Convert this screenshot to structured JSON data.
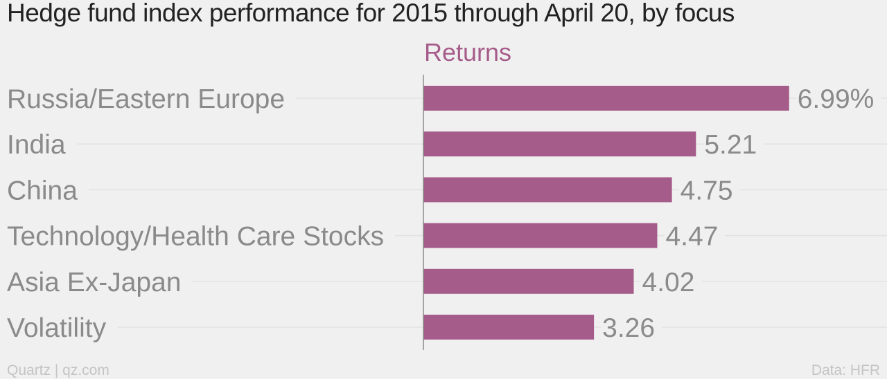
{
  "title": "Hedge fund index performance for 2015 through April 20, by focus",
  "footer": {
    "source_left": "Quartz | qz.com",
    "source_right": "Data: HFR"
  },
  "colors": {
    "bar": "#a65c8a",
    "label": "#8a8a8a",
    "background": "#f0f0f0"
  },
  "chart_data": {
    "type": "bar",
    "orientation": "horizontal",
    "categories": [
      "Russia/Eastern Europe",
      "India",
      "China",
      "Technology/Health Care Stocks",
      "Asia Ex-Japan",
      "Volatility"
    ],
    "series": [
      {
        "name": "Returns",
        "values": [
          6.99,
          5.21,
          4.75,
          4.47,
          4.02,
          3.26
        ]
      }
    ],
    "value_labels": [
      "6.99%",
      "5.21",
      "4.75",
      "4.47",
      "4.02",
      "3.26"
    ],
    "title": "Hedge fund index performance for 2015 through April 20, by focus",
    "xlim": [
      0,
      8
    ],
    "grid": true,
    "legend": "top"
  }
}
